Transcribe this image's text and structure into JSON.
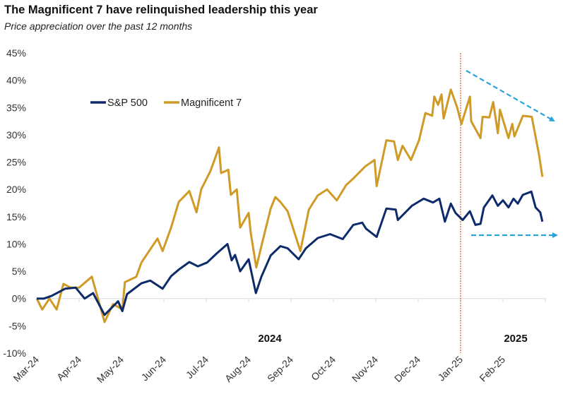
{
  "chart_data": {
    "type": "line",
    "title": "The Magnificent 7 have relinquished leadership this year",
    "subtitle": "Price appreciation over the past 12 months",
    "xlabel": "",
    "ylabel": "",
    "x_units": "months since Mar-24",
    "xlim": [
      0,
      12
    ],
    "ylim": [
      -10,
      45
    ],
    "y_ticks": [
      45,
      40,
      35,
      30,
      25,
      20,
      15,
      10,
      5,
      0,
      -5,
      -10
    ],
    "y_tick_labels": [
      "45%",
      "40%",
      "35%",
      "30%",
      "25%",
      "20%",
      "15%",
      "10%",
      "5%",
      "0%",
      "-5%",
      "-10%"
    ],
    "x_tick_labels": [
      "Mar-24",
      "Apr-24",
      "May-24",
      "Jun-24",
      "Jul-24",
      "Aug-24",
      "Sep-24",
      "Oct-24",
      "Nov-24",
      "Dec-24",
      "Jan-25",
      "Feb-25"
    ],
    "year_labels": [
      {
        "text": "2024",
        "at": 5.5
      },
      {
        "text": "2025",
        "at": 11.3
      }
    ],
    "legend": {
      "placement": "top-left",
      "entries": [
        "S&P 500",
        "Magnificent 7"
      ]
    },
    "grid": false,
    "annotations": {
      "divider_at": 10,
      "divider_color": "#d9541e",
      "arrow_color": "#2aa3d8",
      "arrows": [
        "Magnificent 7 trending down",
        "S&P 500 flat"
      ]
    },
    "series": [
      {
        "name": "S&P 500",
        "color": "#0d2b6b",
        "points": [
          [
            0,
            0
          ],
          [
            0.17,
            0
          ],
          [
            0.35,
            0.5
          ],
          [
            0.67,
            1.8
          ],
          [
            0.92,
            2
          ],
          [
            1.13,
            0
          ],
          [
            1.33,
            1
          ],
          [
            1.6,
            -3
          ],
          [
            1.92,
            -0.5
          ],
          [
            2.02,
            -2.3
          ],
          [
            2.13,
            0.8
          ],
          [
            2.47,
            2.8
          ],
          [
            2.68,
            3.3
          ],
          [
            2.97,
            1.8
          ],
          [
            3.17,
            4.1
          ],
          [
            3.35,
            5.3
          ],
          [
            3.6,
            6.7
          ],
          [
            3.8,
            5.9
          ],
          [
            4.02,
            6.6
          ],
          [
            4.25,
            8.3
          ],
          [
            4.5,
            10
          ],
          [
            4.6,
            7
          ],
          [
            4.68,
            8
          ],
          [
            4.8,
            5
          ],
          [
            5.0,
            7.2
          ],
          [
            5.17,
            1
          ],
          [
            5.3,
            4
          ],
          [
            5.52,
            7.9
          ],
          [
            5.75,
            9.6
          ],
          [
            5.92,
            9.2
          ],
          [
            6.18,
            7.2
          ],
          [
            6.35,
            9.2
          ],
          [
            6.63,
            11.1
          ],
          [
            6.92,
            11.8
          ],
          [
            7.22,
            10.9
          ],
          [
            7.47,
            13.5
          ],
          [
            7.68,
            13.9
          ],
          [
            7.77,
            12.8
          ],
          [
            8.02,
            11.3
          ],
          [
            8.25,
            16.5
          ],
          [
            8.47,
            16.3
          ],
          [
            8.52,
            14.4
          ],
          [
            8.85,
            17
          ],
          [
            9.13,
            18.3
          ],
          [
            9.35,
            17.6
          ],
          [
            9.5,
            18.3
          ],
          [
            9.63,
            14.1
          ],
          [
            9.77,
            17.4
          ],
          [
            9.88,
            15.7
          ],
          [
            10.05,
            14.4
          ],
          [
            10.22,
            16
          ],
          [
            10.35,
            13.5
          ],
          [
            10.47,
            13.7
          ],
          [
            10.55,
            16.7
          ],
          [
            10.75,
            18.9
          ],
          [
            10.88,
            17
          ],
          [
            11.0,
            18
          ],
          [
            11.13,
            16.7
          ],
          [
            11.25,
            18.3
          ],
          [
            11.35,
            17.4
          ],
          [
            11.47,
            19
          ],
          [
            11.67,
            19.6
          ],
          [
            11.77,
            16.7
          ],
          [
            11.88,
            15.8
          ],
          [
            11.93,
            14.1
          ]
        ]
      },
      {
        "name": "Magnificent 7",
        "color": "#cf9a25",
        "points": [
          [
            0,
            0
          ],
          [
            0.13,
            -2
          ],
          [
            0.3,
            0
          ],
          [
            0.47,
            -2
          ],
          [
            0.63,
            2.7
          ],
          [
            0.8,
            2
          ],
          [
            1.0,
            2
          ],
          [
            1.3,
            4
          ],
          [
            1.6,
            -4.3
          ],
          [
            1.8,
            -1
          ],
          [
            2.02,
            -2
          ],
          [
            2.08,
            3
          ],
          [
            2.35,
            4
          ],
          [
            2.47,
            6.6
          ],
          [
            2.85,
            11
          ],
          [
            2.97,
            8.7
          ],
          [
            3.17,
            13
          ],
          [
            3.35,
            17.7
          ],
          [
            3.6,
            19.7
          ],
          [
            3.77,
            15.8
          ],
          [
            3.88,
            20
          ],
          [
            4.1,
            23.4
          ],
          [
            4.3,
            27.7
          ],
          [
            4.35,
            23
          ],
          [
            4.52,
            23.6
          ],
          [
            4.58,
            19
          ],
          [
            4.72,
            20
          ],
          [
            4.8,
            13
          ],
          [
            5.0,
            15.7
          ],
          [
            5.05,
            12
          ],
          [
            5.18,
            5.7
          ],
          [
            5.3,
            9.6
          ],
          [
            5.52,
            16.5
          ],
          [
            5.63,
            18.6
          ],
          [
            5.75,
            17.7
          ],
          [
            5.92,
            16
          ],
          [
            6.22,
            8.7
          ],
          [
            6.42,
            16.3
          ],
          [
            6.63,
            18.9
          ],
          [
            6.85,
            20
          ],
          [
            7.08,
            18
          ],
          [
            7.3,
            20.8
          ],
          [
            7.47,
            22
          ],
          [
            7.75,
            24.2
          ],
          [
            7.97,
            25.4
          ],
          [
            8.02,
            20.6
          ],
          [
            8.25,
            29
          ],
          [
            8.43,
            28.8
          ],
          [
            8.52,
            25.4
          ],
          [
            8.63,
            28
          ],
          [
            8.83,
            25.4
          ],
          [
            9.02,
            29
          ],
          [
            9.17,
            34
          ],
          [
            9.33,
            33.5
          ],
          [
            9.38,
            37
          ],
          [
            9.47,
            35.5
          ],
          [
            9.55,
            37.4
          ],
          [
            9.6,
            33
          ],
          [
            9.77,
            38.3
          ],
          [
            9.92,
            35
          ],
          [
            10.02,
            32
          ],
          [
            10.22,
            37
          ],
          [
            10.25,
            32.5
          ],
          [
            10.47,
            29.4
          ],
          [
            10.52,
            33.3
          ],
          [
            10.68,
            33.2
          ],
          [
            10.77,
            36
          ],
          [
            10.88,
            30.3
          ],
          [
            10.93,
            34.6
          ],
          [
            11.13,
            29.4
          ],
          [
            11.22,
            32
          ],
          [
            11.27,
            29.7
          ],
          [
            11.47,
            33.5
          ],
          [
            11.68,
            33.3
          ],
          [
            11.85,
            26.4
          ],
          [
            11.93,
            22.3
          ]
        ]
      }
    ]
  }
}
